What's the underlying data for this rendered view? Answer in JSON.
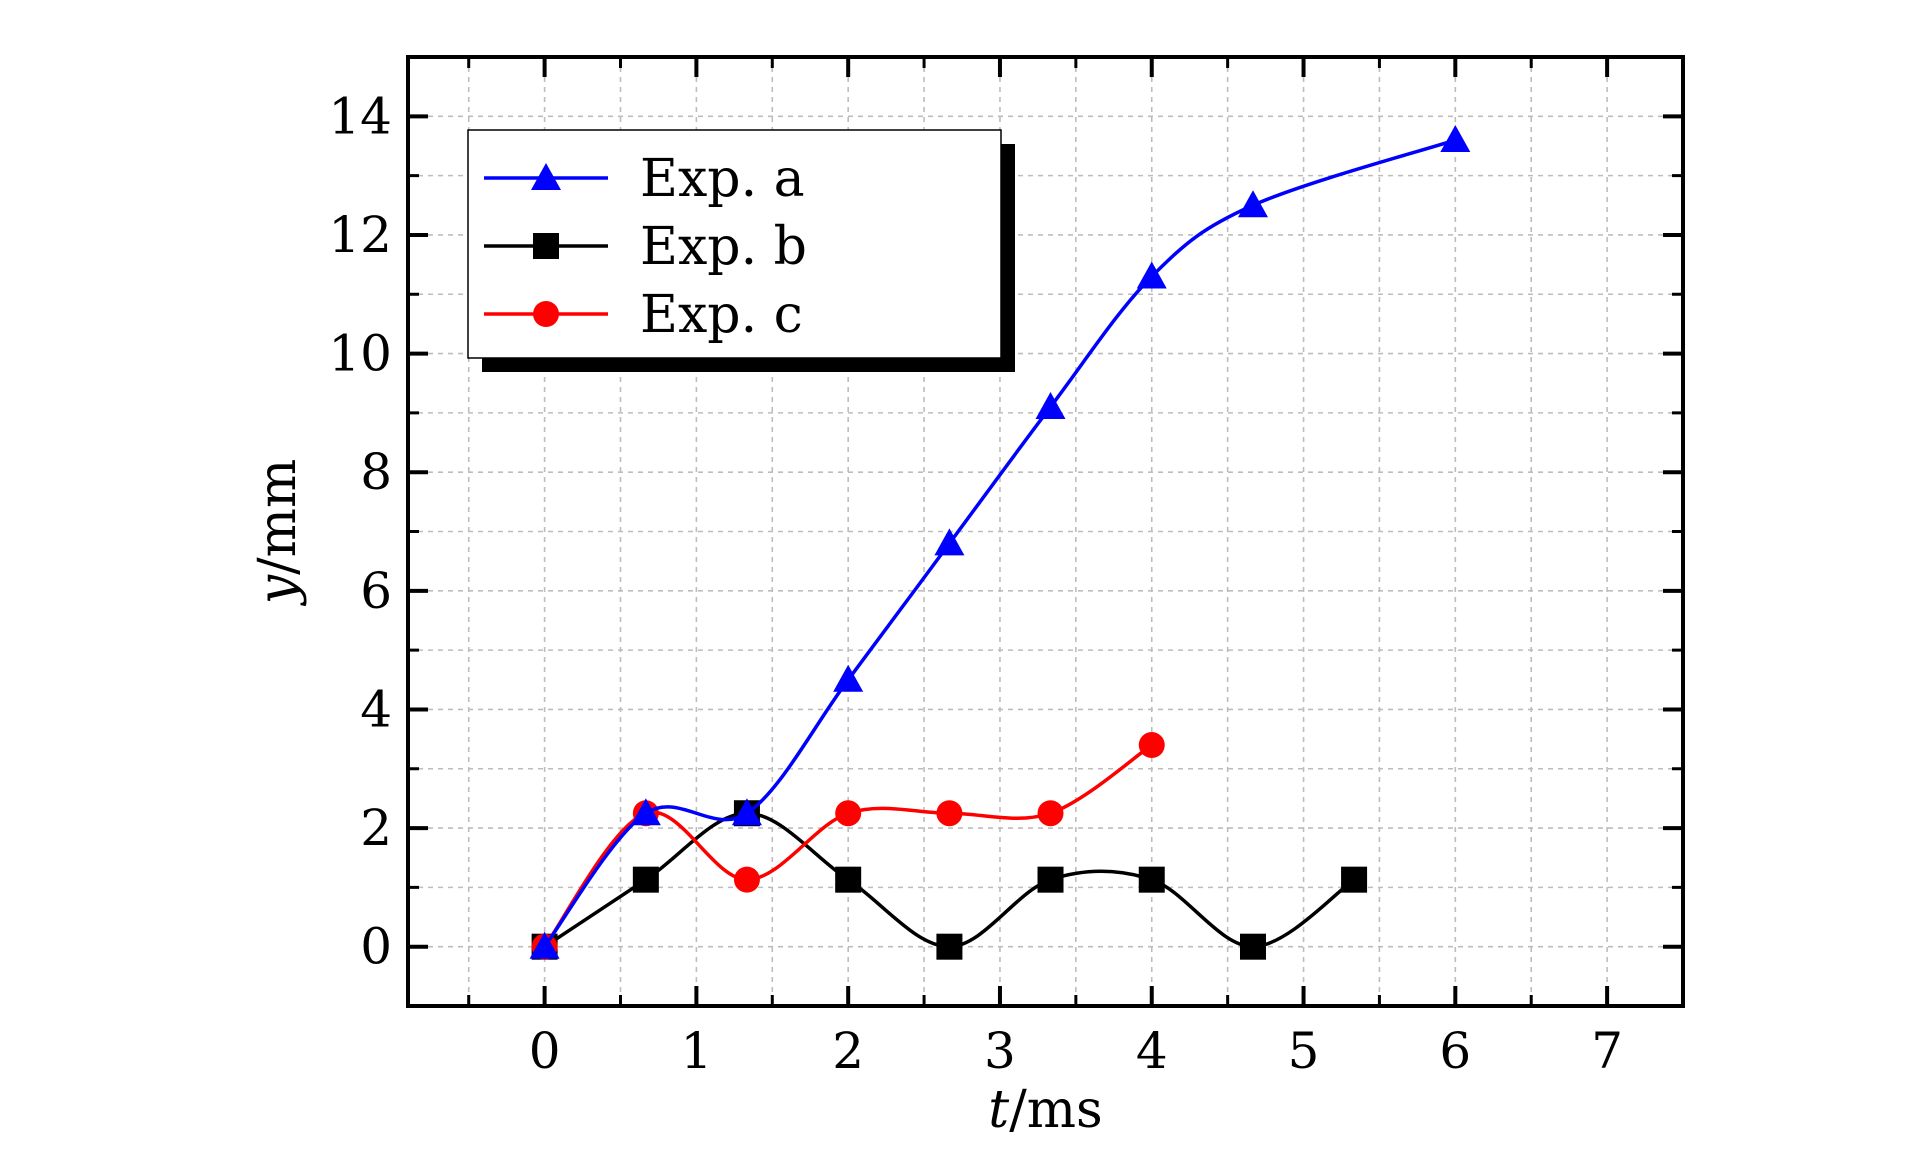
{
  "chart_data": {
    "type": "line",
    "title": "",
    "xlabel": {
      "italic": "t",
      "rest": "/ms"
    },
    "ylabel": {
      "italic": "y",
      "rest": "/mm"
    },
    "xlim": [
      -0.9,
      7.5
    ],
    "ylim": [
      -1,
      15
    ],
    "xticks": [
      "0",
      "1",
      "2",
      "3",
      "4",
      "5",
      "6",
      "7"
    ],
    "yticks": [
      "0",
      "2",
      "4",
      "6",
      "8",
      "10",
      "12",
      "14"
    ],
    "grid": true,
    "legend_position": "top-left",
    "series": [
      {
        "name": "Exp. a",
        "color": "#0000ff",
        "marker": "triangle",
        "x": [
          0,
          0.667,
          1.333,
          2.0,
          2.667,
          3.333,
          4.0,
          4.667,
          6.0
        ],
        "y": [
          0,
          2.25,
          2.25,
          4.5,
          6.8,
          9.1,
          11.3,
          12.5,
          13.6
        ]
      },
      {
        "name": "Exp. b",
        "color": "#000000",
        "marker": "square",
        "x": [
          0,
          0.667,
          1.333,
          2.0,
          2.667,
          3.333,
          4.0,
          4.667,
          5.333
        ],
        "y": [
          0,
          1.13,
          2.25,
          1.13,
          0,
          1.13,
          1.13,
          0,
          1.13
        ]
      },
      {
        "name": "Exp. c",
        "color": "#ff0000",
        "marker": "circle",
        "x": [
          0,
          0.667,
          1.333,
          2.0,
          2.667,
          3.333,
          4.0
        ],
        "y": [
          0,
          2.25,
          1.13,
          2.25,
          2.25,
          2.25,
          3.4
        ]
      }
    ]
  }
}
